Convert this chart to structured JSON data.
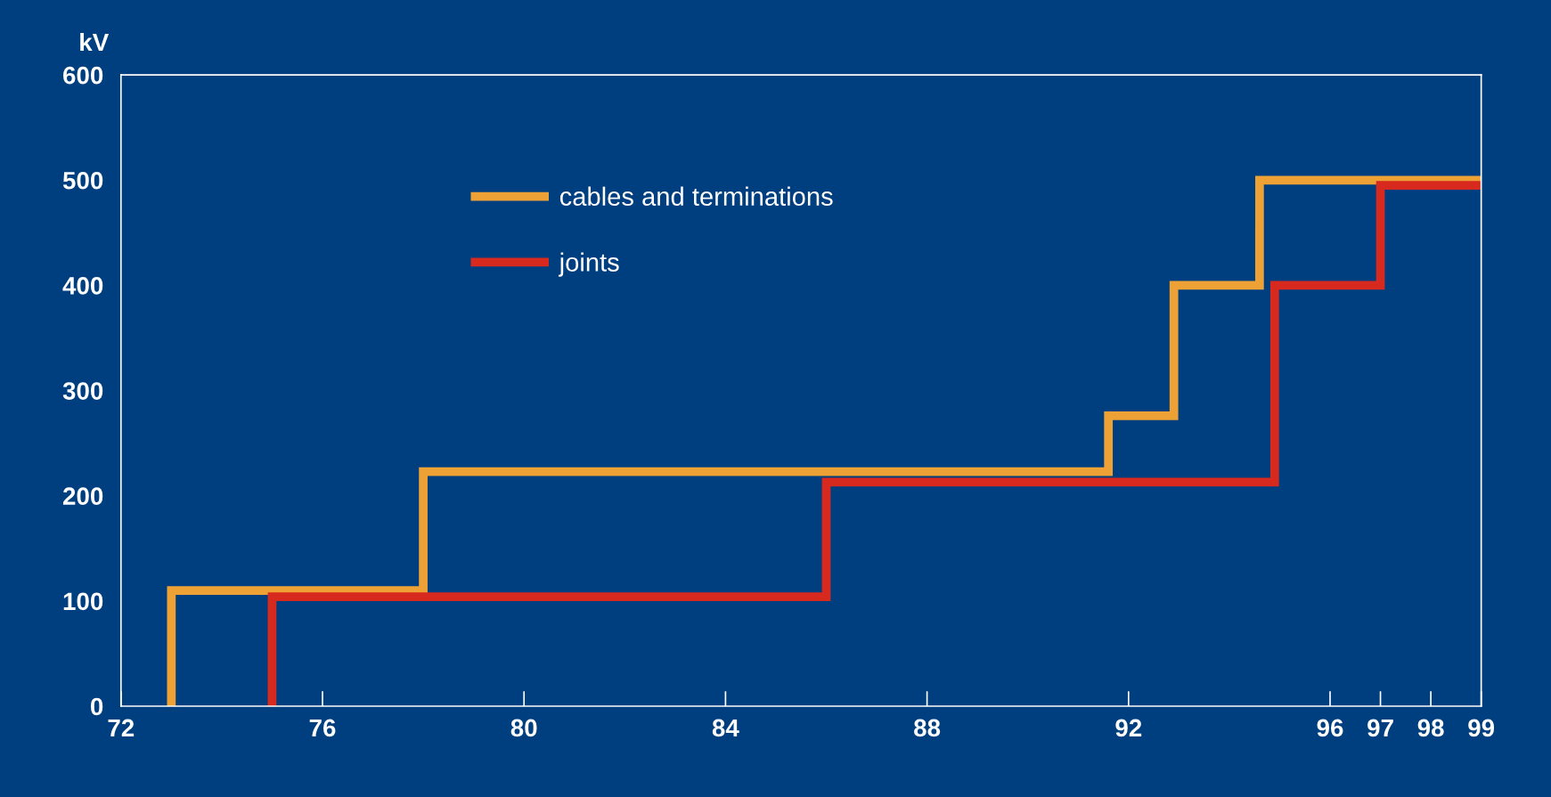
{
  "chart_data": {
    "type": "step",
    "ylabel": "kV",
    "series": [
      {
        "name": "cables and terminations",
        "color": "#eea236",
        "x": [
          73,
          73,
          78,
          91.6,
          92.9,
          94.6,
          99
        ],
        "values": [
          0,
          110,
          223,
          276,
          400,
          500,
          500
        ]
      },
      {
        "name": "joints",
        "color": "#d8291f",
        "x": [
          75,
          75,
          86.0,
          94.9,
          97,
          99
        ],
        "values": [
          0,
          104,
          213,
          400,
          495,
          495
        ]
      }
    ],
    "xlim": [
      72,
      99
    ],
    "xticks": [
      72,
      76,
      80,
      84,
      88,
      92,
      96,
      97,
      98,
      99
    ],
    "ylim": [
      0,
      600
    ],
    "yticks": [
      0,
      100,
      200,
      300,
      400,
      500,
      600
    ],
    "grid": false,
    "legend": "top left",
    "line_style": "solid",
    "marker": "none"
  }
}
